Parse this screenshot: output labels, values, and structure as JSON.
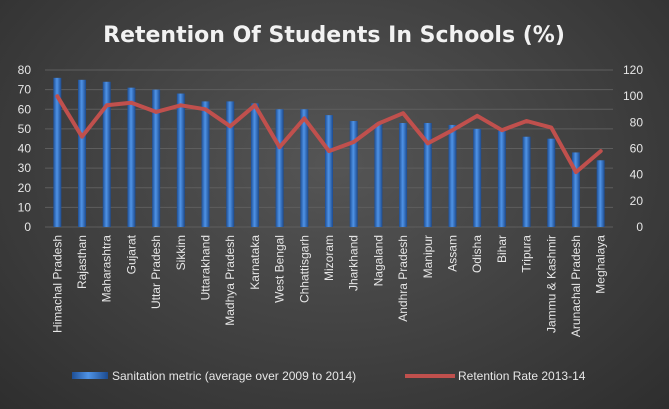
{
  "chart_data": {
    "type": "bar",
    "title": "Retention Of Students In Schools (%)",
    "categories": [
      "Himachal Pradesh",
      "Rajasthan",
      "Maharashtra",
      "Gujarat",
      "Uttar Pradesh",
      "Sikkim",
      "Uttarakhand",
      "Madhya Pradesh",
      "Karnataka",
      "West Bengal",
      "Chhattisgarh",
      "Mizoram",
      "Jharkhand",
      "Nagaland",
      "Andhra Pradesh",
      "Manipur",
      "Assam",
      "Odisha",
      "Bihar",
      "Tripura",
      "Jammu & Kashmir",
      "Arunachal Pradesh",
      "Meghalaya"
    ],
    "series": [
      {
        "name": "Sanitation metric (average over 2009 to 2014)",
        "type": "bar",
        "axis": "left",
        "color": "#2f6fc4",
        "values": [
          76,
          75,
          74,
          71,
          70,
          68,
          64,
          64,
          63,
          60,
          60,
          57,
          54,
          53,
          53,
          53,
          52,
          50,
          49,
          46,
          45,
          38,
          34
        ]
      },
      {
        "name": "Retention Rate 2013-14",
        "type": "line",
        "axis": "right",
        "color": "#c0504d",
        "values": [
          100,
          69,
          93,
          95,
          88,
          93,
          90,
          77,
          93,
          61,
          83,
          58,
          65,
          79,
          87,
          64,
          74,
          85,
          74,
          81,
          76,
          42,
          58
        ]
      }
    ],
    "y_left": {
      "ticks": [
        0,
        10,
        20,
        30,
        40,
        50,
        60,
        70,
        80
      ],
      "lim": [
        0,
        80
      ]
    },
    "y_right": {
      "ticks": [
        0,
        20,
        40,
        60,
        80,
        100,
        120
      ],
      "lim": [
        0,
        120
      ]
    },
    "grid": true,
    "legend": "bottom"
  },
  "colors": {
    "background": "#404040",
    "bar": "#2f6fc4",
    "line": "#c0504d",
    "text": "#e6e6e6"
  }
}
